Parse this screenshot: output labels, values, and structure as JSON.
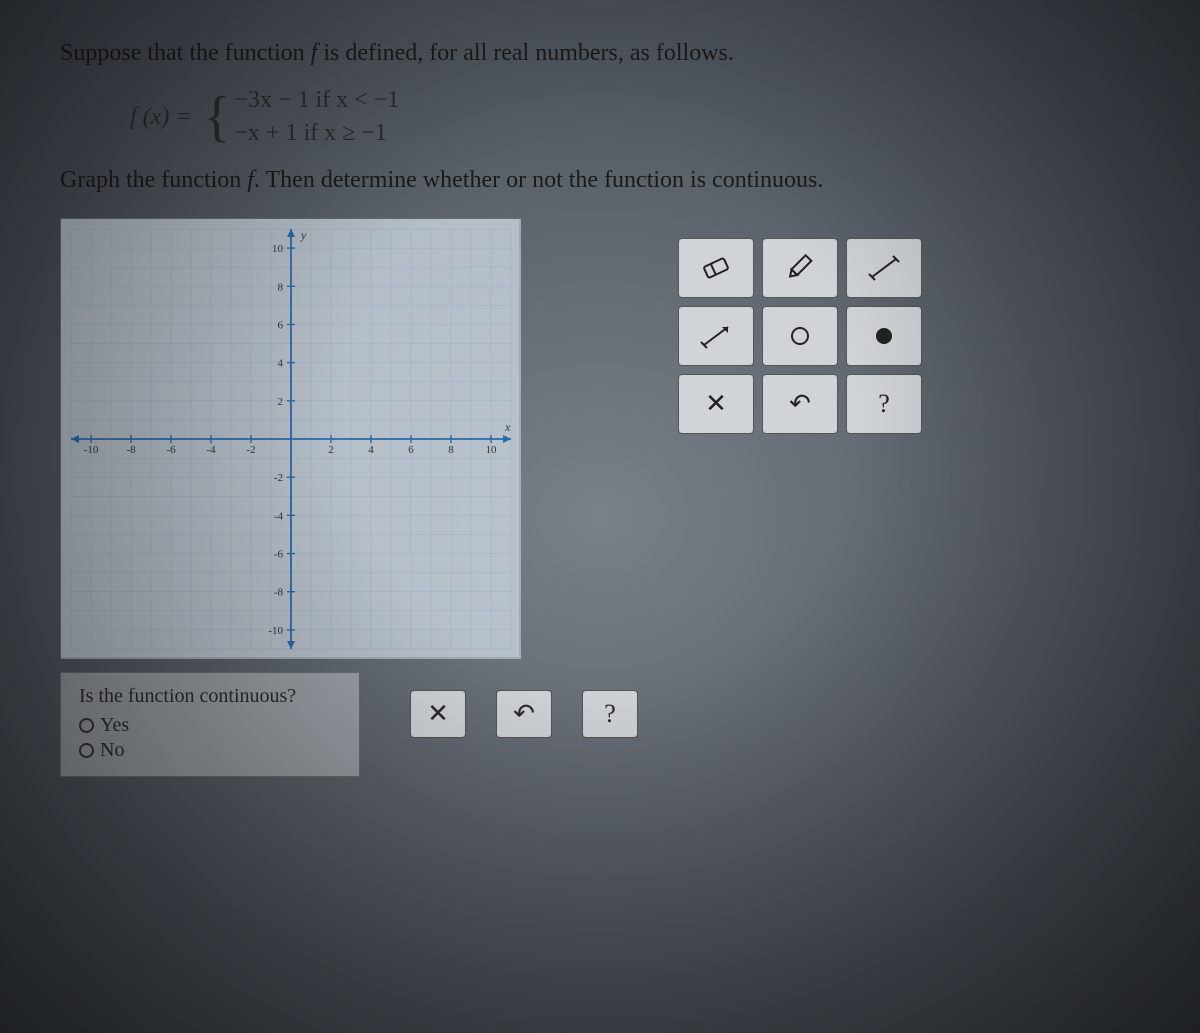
{
  "intro": "Suppose that the function f is defined, for all real numbers, as follows.",
  "formula": {
    "lhs": "f (x) =",
    "case1": "−3x − 1  if  x < −1",
    "case2": "−x + 1   if  x ≥ −1"
  },
  "instruction": "Graph the function f. Then determine whether or not the function is continuous.",
  "graph": {
    "xmin": -11,
    "xmax": 11,
    "ymin": -11,
    "ymax": 11,
    "tick_step": 2,
    "labeled_ticks_x": [
      -10,
      -8,
      -6,
      -4,
      -2,
      2,
      4,
      6,
      8,
      10
    ],
    "labeled_ticks_y": [
      10,
      8,
      6,
      4,
      2,
      -2,
      -4,
      -6,
      -8,
      -10
    ],
    "y_label": "y",
    "x_label": "x",
    "axis_color": "#2a6aa8",
    "grid_color": "#7aa0c4",
    "background_color": "#c8d4e0",
    "tick_fontsize": 11,
    "label_fontsize": 12
  },
  "tools": {
    "row1": [
      "eraser",
      "pencil",
      "line-segment"
    ],
    "row2": [
      "ray",
      "open-point",
      "closed-point"
    ],
    "row3": [
      "clear",
      "undo",
      "help"
    ]
  },
  "tool_labels": {
    "clear": "✕",
    "undo": "↶",
    "help": "?"
  },
  "answer": {
    "question": "Is the function continuous?",
    "opt_yes": "Yes",
    "opt_no": "No"
  },
  "answer_buttons": {
    "clear": "✕",
    "undo": "↶",
    "help": "?"
  }
}
